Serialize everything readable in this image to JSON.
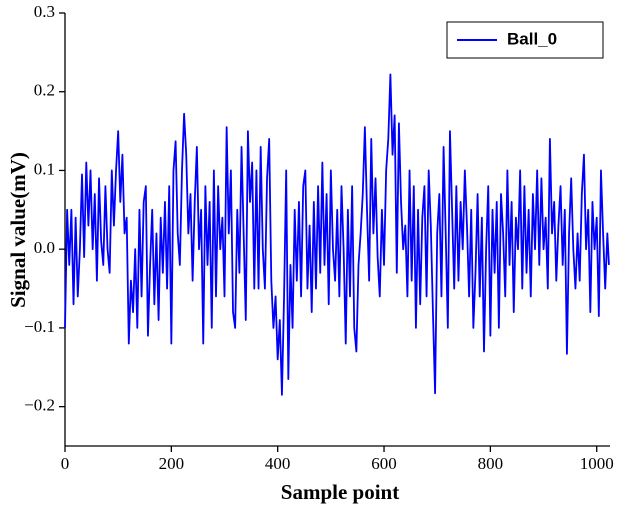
{
  "chart_data": {
    "type": "line",
    "xlabel": "Sample point",
    "ylabel": "Signal value(mV)",
    "x": [
      0,
      4,
      8,
      12,
      16,
      20,
      24,
      28,
      32,
      36,
      40,
      44,
      48,
      52,
      56,
      60,
      64,
      68,
      72,
      76,
      80,
      84,
      88,
      92,
      96,
      100,
      104,
      108,
      112,
      116,
      120,
      124,
      128,
      132,
      136,
      140,
      144,
      148,
      152,
      156,
      160,
      164,
      168,
      172,
      176,
      180,
      184,
      188,
      192,
      196,
      200,
      204,
      208,
      212,
      216,
      220,
      224,
      228,
      232,
      236,
      240,
      244,
      248,
      252,
      256,
      260,
      264,
      268,
      272,
      276,
      280,
      284,
      288,
      292,
      296,
      300,
      304,
      308,
      312,
      316,
      320,
      324,
      328,
      332,
      336,
      340,
      344,
      348,
      352,
      356,
      360,
      364,
      368,
      372,
      376,
      380,
      384,
      388,
      392,
      396,
      400,
      404,
      408,
      412,
      416,
      420,
      424,
      428,
      432,
      436,
      440,
      444,
      448,
      452,
      456,
      460,
      464,
      468,
      472,
      476,
      480,
      484,
      488,
      492,
      496,
      500,
      504,
      508,
      512,
      516,
      520,
      524,
      528,
      532,
      536,
      540,
      544,
      548,
      552,
      556,
      560,
      564,
      568,
      572,
      576,
      580,
      584,
      588,
      592,
      596,
      600,
      604,
      608,
      612,
      616,
      620,
      624,
      628,
      632,
      636,
      640,
      644,
      648,
      652,
      656,
      660,
      664,
      668,
      672,
      676,
      680,
      684,
      688,
      692,
      696,
      700,
      704,
      708,
      712,
      716,
      720,
      724,
      728,
      732,
      736,
      740,
      744,
      748,
      752,
      756,
      760,
      764,
      768,
      772,
      776,
      780,
      784,
      788,
      792,
      796,
      800,
      804,
      808,
      812,
      816,
      820,
      824,
      828,
      832,
      836,
      840,
      844,
      848,
      852,
      856,
      860,
      864,
      868,
      872,
      876,
      880,
      884,
      888,
      892,
      896,
      900,
      904,
      908,
      912,
      916,
      920,
      924,
      928,
      932,
      936,
      940,
      944,
      948,
      952,
      956,
      960,
      964,
      968,
      972,
      976,
      980,
      984,
      988,
      992,
      996,
      1000,
      1004,
      1008,
      1012,
      1016,
      1020,
      1023
    ],
    "series": [
      {
        "name": "Ball_0",
        "color": "#0000ff",
        "values": [
          -0.1,
          0.05,
          -0.02,
          0.05,
          -0.07,
          0.04,
          -0.06,
          0.0,
          0.095,
          -0.01,
          0.11,
          0.03,
          0.1,
          0.0,
          0.07,
          -0.04,
          0.09,
          0.01,
          -0.02,
          0.08,
          0.0,
          -0.03,
          0.1,
          0.03,
          0.1,
          0.15,
          0.06,
          0.12,
          0.02,
          0.04,
          -0.12,
          -0.04,
          -0.08,
          0.0,
          -0.1,
          0.05,
          -0.06,
          0.06,
          0.08,
          -0.11,
          -0.02,
          0.05,
          -0.07,
          0.02,
          -0.09,
          0.04,
          -0.03,
          0.06,
          -0.05,
          0.08,
          -0.12,
          0.1,
          0.137,
          0.02,
          -0.02,
          0.1,
          0.172,
          0.12,
          0.02,
          0.07,
          -0.04,
          0.06,
          0.13,
          0.0,
          0.05,
          -0.12,
          0.08,
          -0.02,
          0.06,
          -0.1,
          0.1,
          -0.06,
          0.08,
          0.0,
          0.04,
          -0.06,
          0.155,
          0.02,
          0.1,
          -0.08,
          -0.1,
          0.05,
          -0.03,
          0.13,
          0.02,
          -0.09,
          0.15,
          0.06,
          0.11,
          -0.05,
          0.1,
          -0.05,
          0.13,
          0.0,
          -0.05,
          0.09,
          0.14,
          -0.04,
          -0.1,
          -0.06,
          -0.14,
          -0.09,
          -0.185,
          -0.06,
          0.1,
          -0.165,
          -0.02,
          -0.1,
          0.05,
          -0.04,
          0.06,
          -0.06,
          0.08,
          0.1,
          -0.05,
          0.03,
          -0.08,
          0.06,
          -0.05,
          0.08,
          -0.03,
          0.11,
          -0.02,
          0.07,
          -0.07,
          0.1,
          0.0,
          -0.04,
          0.05,
          -0.06,
          0.08,
          0.0,
          -0.12,
          0.05,
          -0.06,
          0.08,
          -0.1,
          -0.13,
          -0.02,
          0.02,
          0.07,
          0.155,
          0.05,
          -0.04,
          0.14,
          0.02,
          0.09,
          -0.01,
          -0.06,
          0.05,
          -0.02,
          0.1,
          0.14,
          0.222,
          0.12,
          0.17,
          -0.03,
          0.16,
          0.06,
          0.0,
          0.03,
          -0.06,
          0.1,
          -0.04,
          0.08,
          -0.1,
          0.05,
          -0.07,
          0.04,
          0.08,
          -0.06,
          0.1,
          0.03,
          -0.08,
          -0.183,
          0.02,
          0.07,
          -0.06,
          0.13,
          0.02,
          -0.1,
          0.15,
          0.05,
          -0.05,
          0.08,
          -0.04,
          0.06,
          0.0,
          0.1,
          0.03,
          -0.06,
          0.05,
          -0.1,
          -0.03,
          0.07,
          -0.06,
          0.04,
          -0.13,
          0.0,
          0.08,
          -0.11,
          0.05,
          -0.03,
          0.06,
          -0.1,
          0.07,
          0.02,
          -0.06,
          0.1,
          -0.02,
          0.06,
          -0.08,
          0.04,
          0.0,
          0.1,
          -0.05,
          0.08,
          -0.03,
          0.05,
          -0.06,
          0.07,
          0.0,
          0.1,
          -0.02,
          0.09,
          0.0,
          0.04,
          -0.05,
          0.14,
          0.02,
          0.06,
          -0.04,
          0.03,
          0.08,
          -0.02,
          0.05,
          -0.133,
          0.02,
          0.09,
          0.0,
          -0.05,
          0.02,
          -0.04,
          0.07,
          0.12,
          0.0,
          0.05,
          -0.08,
          0.06,
          0.0,
          0.04,
          -0.085,
          0.1,
          0.02,
          -0.05,
          0.02,
          -0.02
        ]
      }
    ],
    "xlim": [
      0,
      1025
    ],
    "xticks": [
      0,
      200,
      400,
      600,
      800,
      1000
    ],
    "ylim": [
      -0.25,
      0.3
    ],
    "yticks": [
      {
        "value": -0.2,
        "label": "−0.2"
      },
      {
        "value": -0.1,
        "label": "−0.1"
      },
      {
        "value": 0,
        "label": "0.0"
      },
      0.1,
      0.2,
      0.3
    ],
    "legend": "upper right"
  }
}
